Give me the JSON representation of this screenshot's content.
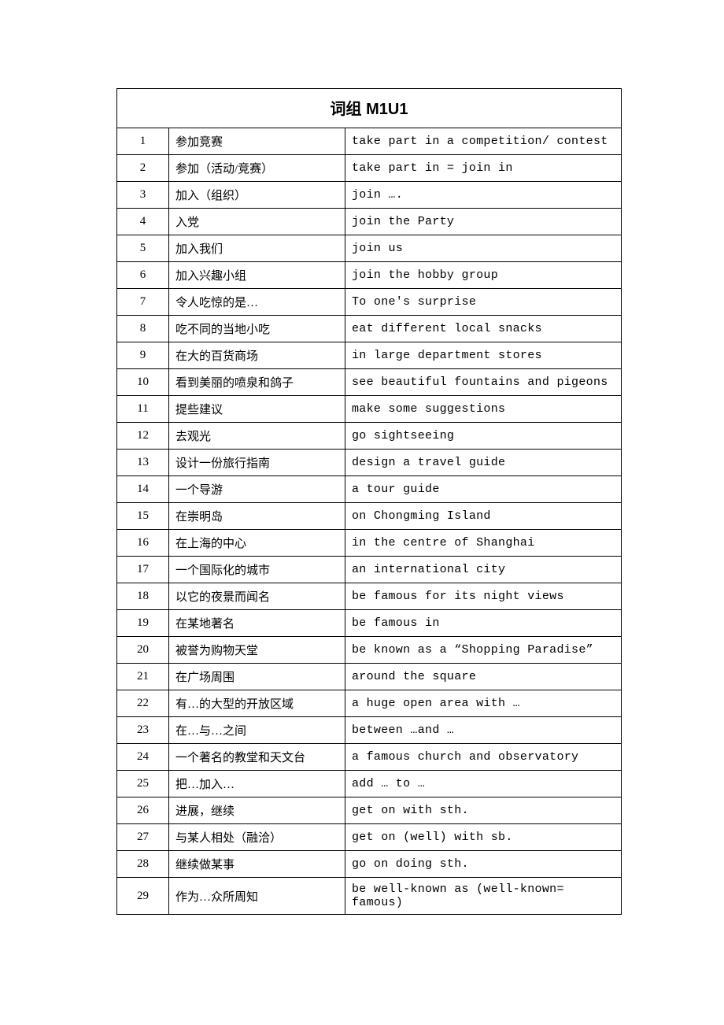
{
  "title": "词组 M1U1",
  "columns": [
    "num",
    "cn",
    "en"
  ],
  "rows": [
    {
      "num": "1",
      "cn": "参加竞赛",
      "en": "take part in a competition/ contest"
    },
    {
      "num": "2",
      "cn": "参加（活动/竞赛）",
      "en": "take part in = join in"
    },
    {
      "num": "3",
      "cn": "加入（组织）",
      "en": "join …."
    },
    {
      "num": "4",
      "cn": "入党",
      "en": "join the Party"
    },
    {
      "num": "5",
      "cn": "加入我们",
      "en": "join us"
    },
    {
      "num": "6",
      "cn": "加入兴趣小组",
      "en": "join the hobby group"
    },
    {
      "num": "7",
      "cn": "令人吃惊的是…",
      "en": "To one's surprise"
    },
    {
      "num": "8",
      "cn": "吃不同的当地小吃",
      "en": "eat different local snacks"
    },
    {
      "num": "9",
      "cn": "在大的百货商场",
      "en": "in large department stores"
    },
    {
      "num": "10",
      "cn": "看到美丽的喷泉和鸽子",
      "en": "see beautiful fountains and pigeons"
    },
    {
      "num": "11",
      "cn": "提些建议",
      "en": "make some suggestions"
    },
    {
      "num": "12",
      "cn": "去观光",
      "en": "go sightseeing"
    },
    {
      "num": "13",
      "cn": "设计一份旅行指南",
      "en": "design a travel guide"
    },
    {
      "num": "14",
      "cn": "一个导游",
      "en": "a tour guide"
    },
    {
      "num": "15",
      "cn": "在崇明岛",
      "en": "on Chongming Island"
    },
    {
      "num": "16",
      "cn": "在上海的中心",
      "en": "in the centre of Shanghai"
    },
    {
      "num": "17",
      "cn": "一个国际化的城市",
      "en": "an international city"
    },
    {
      "num": "18",
      "cn": "以它的夜景而闻名",
      "en": "be famous for its night views"
    },
    {
      "num": "19",
      "cn": "在某地著名",
      "en": "be famous in"
    },
    {
      "num": "20",
      "cn": "被誉为购物天堂",
      "en": "be known as a “Shopping Paradise”"
    },
    {
      "num": "21",
      "cn": "在广场周围",
      "en": "around the square"
    },
    {
      "num": "22",
      "cn": "有…的大型的开放区域",
      "en": "a huge open area with …"
    },
    {
      "num": "23",
      "cn": "在…与…之间",
      "en": "between …and …"
    },
    {
      "num": "24",
      "cn": "一个著名的教堂和天文台",
      "en": "a famous church and observatory"
    },
    {
      "num": "25",
      "cn": "把…加入…",
      "en": "add … to …"
    },
    {
      "num": "26",
      "cn": "进展，继续",
      "en": "get on with sth."
    },
    {
      "num": "27",
      "cn": "与某人相处（融洽）",
      "en": "get on (well) with sb."
    },
    {
      "num": "28",
      "cn": "继续做某事",
      "en": "go on doing sth."
    },
    {
      "num": "29",
      "cn": "作为…众所周知",
      "en": "be well-known as   (well-known= famous)"
    }
  ]
}
